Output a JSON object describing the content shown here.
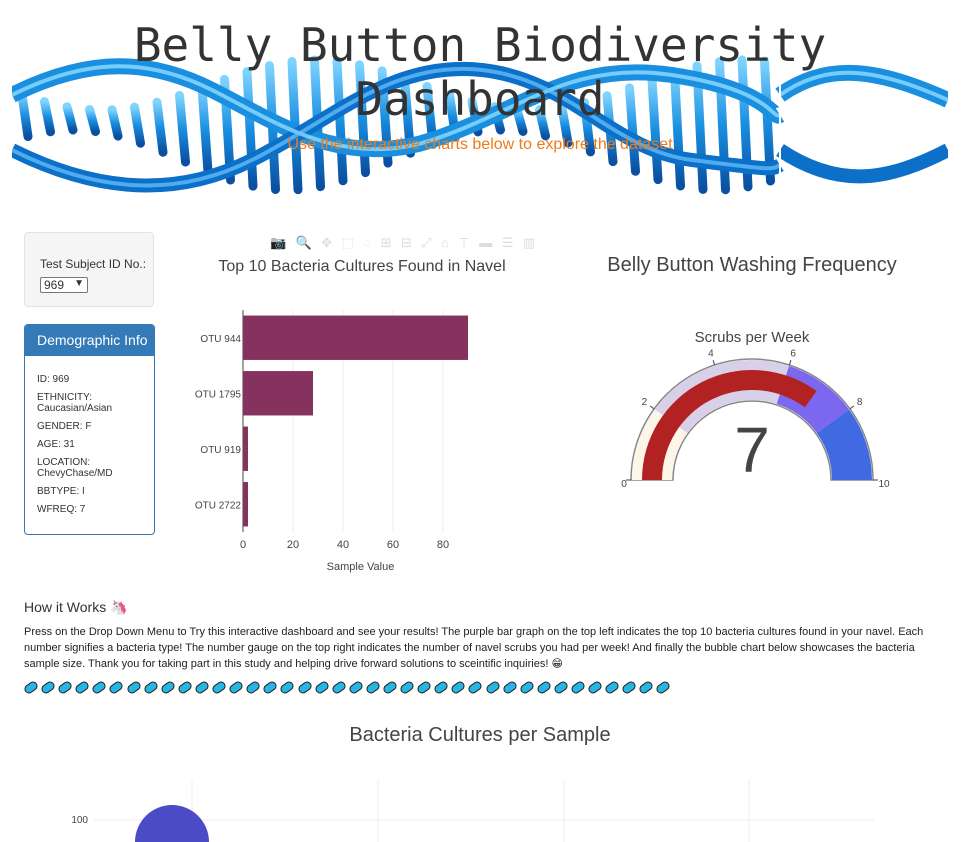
{
  "header": {
    "title": "Belly Button Biodiversity Dashboard",
    "subtitle": "Use the interactive charts below to explore the dataset"
  },
  "selector": {
    "label": "Test Subject ID No.:",
    "selected": "969"
  },
  "demographics": {
    "heading": "Demographic Info",
    "lines": [
      "ID: 969",
      "ETHNICITY: Caucasian/Asian",
      "GENDER: F",
      "AGE: 31",
      "LOCATION: ChevyChase/MD",
      "BBTYPE: I",
      "WFREQ: 7"
    ]
  },
  "bar_chart_data": {
    "type": "bar",
    "orientation": "horizontal",
    "title": "Top 10 Bacteria Cultures Found in Navel",
    "xlabel": "Sample Value",
    "categories": [
      "OTU 944",
      "OTU 1795",
      "OTU 919",
      "OTU 2722"
    ],
    "values": [
      90,
      28,
      2,
      2
    ],
    "xticks": [
      0,
      20,
      40,
      60,
      80
    ],
    "xlim": [
      0,
      94
    ],
    "color": "#85335e",
    "grid": true
  },
  "gauge_chart_data": {
    "type": "gauge",
    "title": "Belly Button Washing Frequency",
    "subtitle": "Scrubs per Week",
    "value": 7,
    "range": [
      0,
      10
    ],
    "ticks": [
      0,
      2,
      4,
      6,
      8,
      10
    ],
    "steps": [
      {
        "range": [
          0,
          2
        ],
        "color": "#fdf5e6"
      },
      {
        "range": [
          2,
          6
        ],
        "color": "#d8d0e8"
      },
      {
        "range": [
          6,
          8
        ],
        "color": "#7b68ee"
      },
      {
        "range": [
          8,
          10
        ],
        "color": "#4169e1"
      }
    ],
    "bar_color": "#b22222"
  },
  "how_it_works": {
    "title": "How it Works 🦄",
    "text": "Press on the Drop Down Menu to Try this interactive dashboard and see your results! The purple bar graph on the top left indicates the top 10 bacteria cultures found in your navel. Each number signifies a bacteria type! The number gauge on the top right indicates the number of navel scrubs you had per week! And finally the bubble chart below showcases the bacteria sample size. Thank you for taking part in this study and helping drive forward solutions to sceintific inquiries! 😁",
    "pill_count": 38
  },
  "bubble_chart_data": {
    "type": "scatter",
    "title": "Bacteria Cultures per Sample",
    "yticks": [
      100
    ],
    "points": [
      {
        "x": 944,
        "y": 90,
        "color": "#4b4bc6"
      }
    ]
  },
  "colors": {
    "accent": "#337ab7",
    "subtitle": "#f07a1a",
    "dna": "#1e90e6"
  }
}
